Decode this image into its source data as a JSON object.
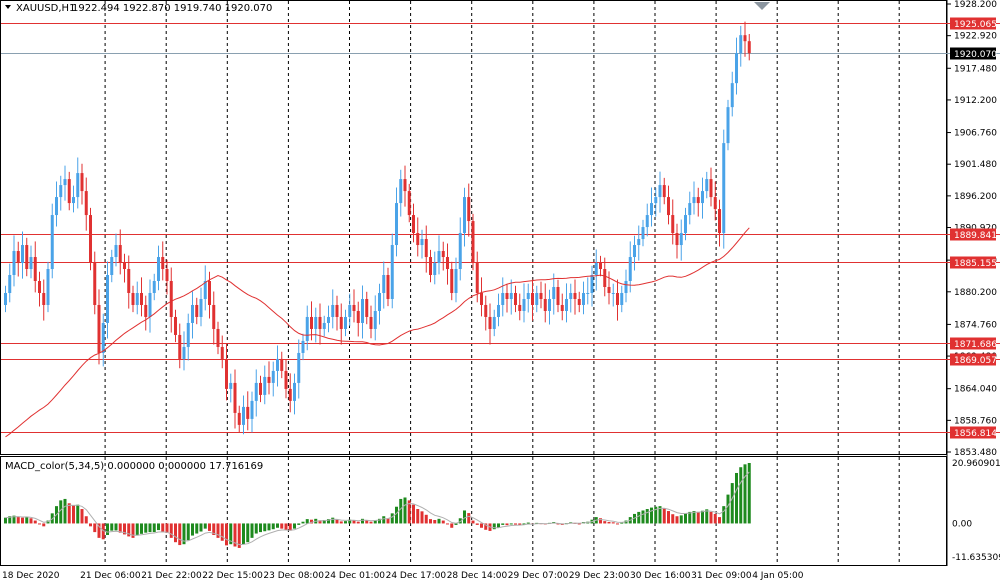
{
  "chart_title": {
    "symbol": "XAUUSD,H1",
    "ohlc": "1922.494 1922.870 1919.740 1920.070"
  },
  "macd_title": "MACD_color(5,34,5) 0.000000 0.000000 17.716169",
  "colors": {
    "bull": "#4aa3e8",
    "bear": "#e03131",
    "ma": "#e03131",
    "grid": "#000000",
    "level": "#e03131",
    "current": "#8aa0b0",
    "tag_bg": "#e03131",
    "current_tag_bg": "#000000",
    "macd_up": "#1e8a1e",
    "macd_down": "#e03131",
    "signal": "#b0b0b0"
  },
  "chart_data": [
    {
      "type": "candlestick",
      "ylim": [
        1853.48,
        1928.2
      ],
      "y_ticks": [
        "1928.200",
        "1922.920",
        "1917.480",
        "1912.200",
        "1906.760",
        "1901.480",
        "1896.200",
        "1890.920",
        "1885.480",
        "1880.200",
        "1874.760",
        "1869.480",
        "1864.040",
        "1858.760",
        "1853.480"
      ],
      "x_labels": [
        "18 Dec 2020",
        "21 Dec 06:00",
        "21 Dec 22:00",
        "22 Dec 15:00",
        "23 Dec 08:00",
        "24 Dec 01:00",
        "24 Dec 17:00",
        "28 Dec 14:00",
        "29 Dec 07:00",
        "29 Dec 23:00",
        "30 Dec 16:00",
        "31 Dec 09:00",
        "4 Jan 05:00"
      ],
      "levels": [
        "1925.065",
        "1889.841",
        "1885.155",
        "1871.686",
        "1869.057",
        "1856.814"
      ],
      "current_price": "1920.070",
      "close": [
        1880,
        1883,
        1887,
        1885,
        1888,
        1884,
        1886,
        1882,
        1880,
        1878,
        1884,
        1893,
        1896,
        1898,
        1899,
        1895,
        1896,
        1900,
        1897,
        1893,
        1885,
        1878,
        1870,
        1875,
        1883,
        1886,
        1888,
        1885,
        1884,
        1880,
        1878,
        1880,
        1878,
        1876,
        1880,
        1882,
        1886,
        1884,
        1882,
        1876,
        1873,
        1869,
        1871,
        1875,
        1878,
        1876,
        1879,
        1882,
        1878,
        1874,
        1871,
        1869,
        1864,
        1865,
        1860,
        1858,
        1861,
        1859,
        1862,
        1865,
        1863,
        1866,
        1865,
        1867,
        1869,
        1867,
        1864,
        1862,
        1865,
        1870,
        1872,
        1876,
        1874,
        1876,
        1874,
        1875,
        1876,
        1878,
        1876,
        1874,
        1876,
        1878,
        1877,
        1875,
        1879,
        1876,
        1874,
        1877,
        1880,
        1883,
        1879,
        1888,
        1895,
        1899,
        1897,
        1893,
        1890,
        1888,
        1889,
        1886,
        1883,
        1885,
        1887,
        1886,
        1884,
        1880,
        1884,
        1890,
        1896,
        1892,
        1885,
        1880,
        1878,
        1876,
        1874,
        1876,
        1878,
        1880,
        1879,
        1880,
        1878,
        1877,
        1879,
        1880,
        1878,
        1880,
        1879,
        1877,
        1879,
        1881,
        1878,
        1877,
        1879,
        1880,
        1879,
        1878,
        1880,
        1880,
        1883,
        1885,
        1884,
        1881,
        1880,
        1880,
        1878,
        1880,
        1882,
        1886,
        1888,
        1889,
        1891,
        1893,
        1895,
        1896,
        1898,
        1896,
        1893,
        1890,
        1888,
        1890,
        1893,
        1895,
        1896,
        1895,
        1897,
        1899,
        1896,
        1894,
        1890,
        1905,
        1911,
        1915,
        1920,
        1923,
        1922,
        1920
      ],
      "ma_line": true
    },
    {
      "type": "bar",
      "series_name": "MACD_color(5,34,5)",
      "ylim": [
        -11.635309,
        20.960901
      ],
      "y_ticks": [
        "20.960901",
        "0.00",
        "-11.635309"
      ],
      "values": [
        2,
        2.5,
        2.7,
        2.4,
        2,
        2.3,
        1.8,
        1,
        -0.2,
        -1,
        1,
        3.5,
        6,
        8,
        8.5,
        7,
        6.2,
        6.5,
        5,
        2.5,
        -1,
        -3,
        -5,
        -5.5,
        -4,
        -2.5,
        -2.4,
        -3.2,
        -3.8,
        -4.5,
        -5,
        -4.2,
        -3.6,
        -3.2,
        -3,
        -3,
        -2.3,
        -2.8,
        -3.3,
        -5,
        -6.5,
        -7.5,
        -7.2,
        -5.8,
        -4.2,
        -3.5,
        -2.8,
        -1.8,
        -2.6,
        -4,
        -5,
        -6,
        -7.6,
        -7.2,
        -8,
        -8.5,
        -7.2,
        -6.5,
        -5,
        -3.5,
        -3,
        -2.7,
        -2.4,
        -2,
        -1.5,
        -1.8,
        -2.3,
        -2.5,
        -1.8,
        -0.5,
        0.6,
        1.5,
        1.3,
        1.6,
        1.1,
        1.2,
        1.5,
        2,
        1.3,
        0.7,
        0.8,
        1.3,
        1.1,
        0.6,
        1.6,
        1.1,
        0.6,
        1.1,
        1.6,
        2.5,
        1.8,
        3.5,
        5.8,
        8.5,
        9,
        8,
        6.5,
        5,
        4.2,
        3,
        1.5,
        1.2,
        1.6,
        1,
        -0.2,
        -1.5,
        -0.5,
        1.8,
        4.5,
        3.6,
        1,
        -0.5,
        -1.5,
        -2.2,
        -2.6,
        -2,
        -1.5,
        -0.5,
        -0.6,
        -0.2,
        -0.4,
        -0.5,
        -0.2,
        0.3,
        -0.3,
        0.2,
        0.1,
        -0.3,
        0.2,
        0.5,
        -0.3,
        -0.5,
        0.1,
        0.4,
        0.2,
        -0.1,
        0.5,
        0.6,
        1.3,
        2.2,
        1.8,
        0.8,
        0.5,
        0.4,
        -0.3,
        0.3,
        1,
        2.2,
        3.3,
        4,
        4.5,
        5,
        5.5,
        5.8,
        6,
        5.3,
        4.3,
        3.2,
        2.5,
        2.8,
        3.5,
        4,
        4.3,
        4,
        4.4,
        4.9,
        4,
        3.3,
        2.2,
        6,
        10,
        14,
        17.5,
        19.5,
        20.5,
        20.96
      ]
    }
  ]
}
